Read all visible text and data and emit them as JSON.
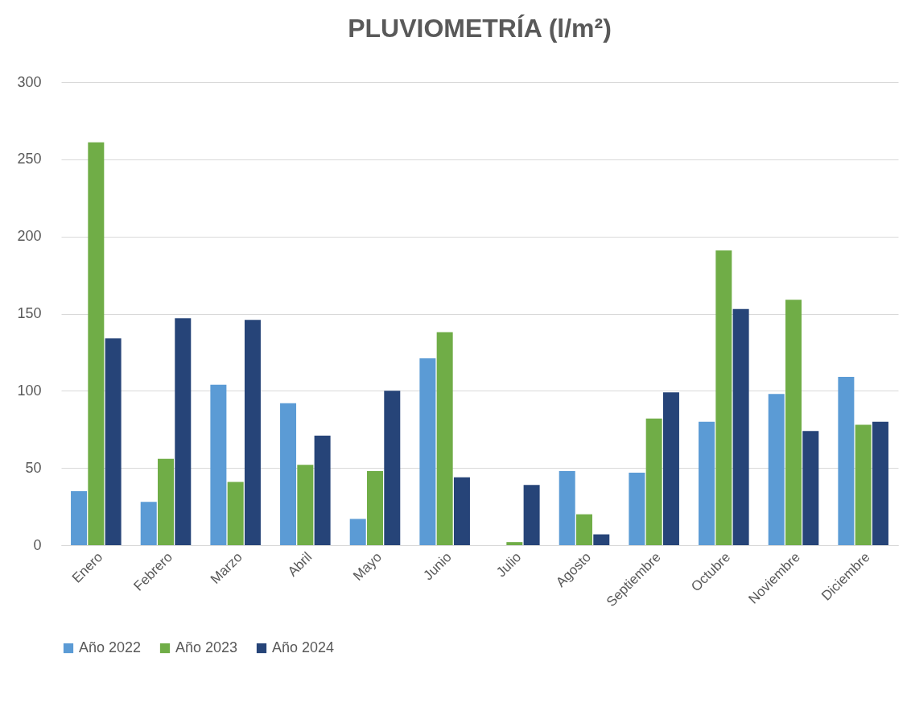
{
  "chart_data": {
    "type": "bar",
    "title": "PLUVIOMETRÍA (l/m²)",
    "categories": [
      "Enero",
      "Febrero",
      "Marzo",
      "Abril",
      "Mayo",
      "Junio",
      "Julio",
      "Agosto",
      "Septiembre",
      "Octubre",
      "Noviembre",
      "Diciembre"
    ],
    "series": [
      {
        "name": "Año 2022",
        "color": "#5b9bd5",
        "values": [
          35,
          28,
          104,
          92,
          17,
          121,
          0,
          48,
          47,
          80,
          98,
          109
        ]
      },
      {
        "name": "Año 2023",
        "color": "#70ad47",
        "values": [
          261,
          56,
          41,
          52,
          48,
          138,
          2,
          20,
          82,
          191,
          159,
          78
        ]
      },
      {
        "name": "Año 2024",
        "color": "#264478",
        "values": [
          134,
          147,
          146,
          71,
          100,
          44,
          39,
          7,
          99,
          153,
          74,
          80
        ]
      }
    ],
    "ylim": [
      0,
      300
    ],
    "yticks": [
      0,
      50,
      100,
      150,
      200,
      250,
      300
    ],
    "grid": "y",
    "legend": "bottom"
  }
}
